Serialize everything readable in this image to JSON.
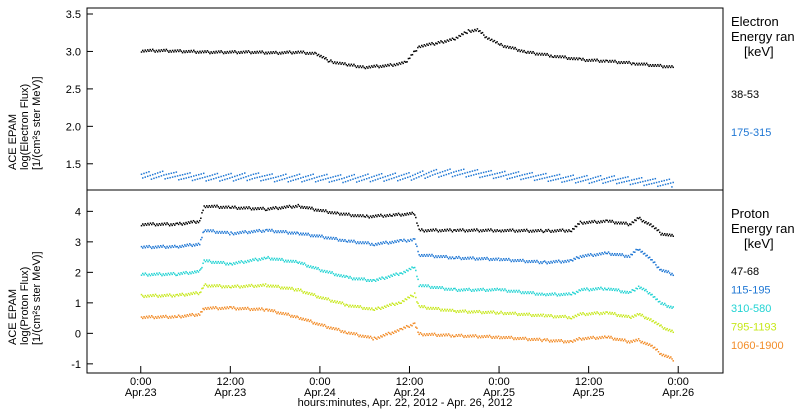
{
  "colors": {
    "axis": "#000000",
    "black": "#000000",
    "blue": "#1f77d4",
    "cyan": "#22d3d3",
    "yellowgreen": "#c7e81c",
    "orange": "#f28c28"
  },
  "chart_data": [
    {
      "type": "scatter",
      "panel": "electron",
      "ylabel_lines": [
        "ACE EPAM",
        "log(Electron Flux)",
        "[1/(cm²s ster MeV)]"
      ],
      "ylim": [
        1.15,
        3.58
      ],
      "yticks": [
        {
          "value": 1.5,
          "label": "1.5"
        },
        {
          "value": 2.0,
          "label": "2.0"
        },
        {
          "value": 2.5,
          "label": "2.5"
        },
        {
          "value": 3.0,
          "label": "3.0"
        },
        {
          "value": 3.5,
          "label": "3.5"
        }
      ],
      "legend_title_lines": [
        "Electron",
        "Energy ran",
        "[keV]"
      ],
      "series": [
        {
          "name": "38-53",
          "color": "#000000",
          "points": [
            [
              0.0,
              3.02
            ],
            [
              0.25,
              3.02
            ],
            [
              0.5,
              3.01
            ],
            [
              0.75,
              3.0
            ],
            [
              1.0,
              3.0
            ],
            [
              1.25,
              3.0
            ],
            [
              1.5,
              2.99
            ],
            [
              1.75,
              3.0
            ],
            [
              1.95,
              2.98
            ],
            [
              2.1,
              2.88
            ],
            [
              2.3,
              2.83
            ],
            [
              2.5,
              2.8
            ],
            [
              2.75,
              2.82
            ],
            [
              2.95,
              2.86
            ],
            [
              3.1,
              3.08
            ],
            [
              3.3,
              3.12
            ],
            [
              3.5,
              3.18
            ],
            [
              3.65,
              3.28
            ],
            [
              3.75,
              3.3
            ],
            [
              3.85,
              3.2
            ],
            [
              4.0,
              3.1
            ],
            [
              4.3,
              3.0
            ],
            [
              4.6,
              2.95
            ],
            [
              4.9,
              2.9
            ],
            [
              5.2,
              2.88
            ],
            [
              5.5,
              2.85
            ],
            [
              5.75,
              2.82
            ],
            [
              5.95,
              2.8
            ]
          ]
        },
        {
          "name": "175-315",
          "color": "#1f77d4",
          "points": [
            [
              0.0,
              1.35
            ],
            [
              0.25,
              1.36
            ],
            [
              0.5,
              1.34
            ],
            [
              0.75,
              1.33
            ],
            [
              1.0,
              1.33
            ],
            [
              1.25,
              1.34
            ],
            [
              1.5,
              1.32
            ],
            [
              1.75,
              1.32
            ],
            [
              2.0,
              1.32
            ],
            [
              2.25,
              1.31
            ],
            [
              2.5,
              1.32
            ],
            [
              2.75,
              1.33
            ],
            [
              3.0,
              1.34
            ],
            [
              3.25,
              1.38
            ],
            [
              3.5,
              1.39
            ],
            [
              3.75,
              1.38
            ],
            [
              4.0,
              1.36
            ],
            [
              4.25,
              1.35
            ],
            [
              4.5,
              1.33
            ],
            [
              4.75,
              1.31
            ],
            [
              5.0,
              1.3
            ],
            [
              5.25,
              1.3
            ],
            [
              5.5,
              1.28
            ],
            [
              5.75,
              1.26
            ],
            [
              5.95,
              1.25
            ]
          ]
        }
      ]
    },
    {
      "type": "scatter",
      "panel": "proton",
      "ylabel_lines": [
        "ACE EPAM",
        "log(Proton Flux)",
        "[1/(cm²s ster MeV)]"
      ],
      "ylim": [
        -1.3,
        4.7
      ],
      "yticks": [
        {
          "value": -1,
          "label": "-1"
        },
        {
          "value": 0,
          "label": "0"
        },
        {
          "value": 1,
          "label": "1"
        },
        {
          "value": 2,
          "label": "2"
        },
        {
          "value": 3,
          "label": "3"
        },
        {
          "value": 4,
          "label": "4"
        }
      ],
      "legend_title_lines": [
        "Proton",
        "Energy ran",
        "[keV]"
      ],
      "series": [
        {
          "name": "47-68",
          "color": "#000000",
          "points": [
            [
              0.0,
              3.6
            ],
            [
              0.4,
              3.6
            ],
            [
              0.65,
              3.7
            ],
            [
              0.7,
              4.2
            ],
            [
              1.0,
              4.15
            ],
            [
              1.4,
              4.1
            ],
            [
              1.75,
              4.2
            ],
            [
              2.0,
              4.05
            ],
            [
              2.2,
              3.95
            ],
            [
              2.5,
              3.85
            ],
            [
              2.8,
              3.9
            ],
            [
              3.05,
              3.95
            ],
            [
              3.1,
              3.4
            ],
            [
              3.5,
              3.4
            ],
            [
              4.0,
              3.4
            ],
            [
              4.5,
              3.38
            ],
            [
              4.8,
              3.4
            ],
            [
              4.9,
              3.65
            ],
            [
              5.2,
              3.7
            ],
            [
              5.45,
              3.6
            ],
            [
              5.55,
              3.8
            ],
            [
              5.7,
              3.55
            ],
            [
              5.8,
              3.3
            ],
            [
              5.95,
              3.2
            ]
          ]
        },
        {
          "name": "115-195",
          "color": "#1f77d4",
          "points": [
            [
              0.0,
              2.85
            ],
            [
              0.4,
              2.87
            ],
            [
              0.65,
              2.95
            ],
            [
              0.7,
              3.4
            ],
            [
              1.0,
              3.3
            ],
            [
              1.4,
              3.4
            ],
            [
              1.75,
              3.3
            ],
            [
              2.0,
              3.2
            ],
            [
              2.3,
              3.05
            ],
            [
              2.6,
              2.95
            ],
            [
              2.9,
              3.05
            ],
            [
              3.05,
              3.1
            ],
            [
              3.1,
              2.6
            ],
            [
              3.5,
              2.5
            ],
            [
              4.0,
              2.45
            ],
            [
              4.5,
              2.35
            ],
            [
              4.8,
              2.4
            ],
            [
              4.9,
              2.55
            ],
            [
              5.2,
              2.65
            ],
            [
              5.45,
              2.55
            ],
            [
              5.55,
              2.8
            ],
            [
              5.7,
              2.4
            ],
            [
              5.8,
              2.1
            ],
            [
              5.95,
              1.95
            ]
          ]
        },
        {
          "name": "310-580",
          "color": "#22d3d3",
          "points": [
            [
              0.0,
              1.95
            ],
            [
              0.4,
              1.97
            ],
            [
              0.65,
              2.05
            ],
            [
              0.7,
              2.4
            ],
            [
              1.0,
              2.3
            ],
            [
              1.4,
              2.5
            ],
            [
              1.75,
              2.35
            ],
            [
              2.0,
              2.1
            ],
            [
              2.3,
              1.85
            ],
            [
              2.6,
              1.75
            ],
            [
              2.9,
              2.0
            ],
            [
              3.05,
              2.2
            ],
            [
              3.1,
              1.6
            ],
            [
              3.5,
              1.45
            ],
            [
              4.0,
              1.45
            ],
            [
              4.5,
              1.3
            ],
            [
              4.8,
              1.3
            ],
            [
              4.9,
              1.45
            ],
            [
              5.2,
              1.5
            ],
            [
              5.45,
              1.35
            ],
            [
              5.55,
              1.55
            ],
            [
              5.7,
              1.3
            ],
            [
              5.8,
              1.0
            ],
            [
              5.95,
              0.85
            ]
          ]
        },
        {
          "name": "795-1193",
          "color": "#c7e81c",
          "points": [
            [
              0.0,
              1.25
            ],
            [
              0.4,
              1.27
            ],
            [
              0.65,
              1.35
            ],
            [
              0.7,
              1.6
            ],
            [
              1.0,
              1.55
            ],
            [
              1.4,
              1.6
            ],
            [
              1.75,
              1.45
            ],
            [
              2.0,
              1.2
            ],
            [
              2.3,
              0.95
            ],
            [
              2.6,
              0.8
            ],
            [
              2.9,
              1.05
            ],
            [
              3.05,
              1.3
            ],
            [
              3.1,
              0.9
            ],
            [
              3.5,
              0.75
            ],
            [
              4.0,
              0.7
            ],
            [
              4.5,
              0.6
            ],
            [
              4.8,
              0.55
            ],
            [
              4.9,
              0.65
            ],
            [
              5.2,
              0.7
            ],
            [
              5.45,
              0.55
            ],
            [
              5.55,
              0.65
            ],
            [
              5.7,
              0.45
            ],
            [
              5.8,
              0.25
            ],
            [
              5.95,
              0.05
            ]
          ]
        },
        {
          "name": "1060-1900",
          "color": "#f28c28",
          "points": [
            [
              0.0,
              0.55
            ],
            [
              0.4,
              0.57
            ],
            [
              0.65,
              0.65
            ],
            [
              0.7,
              0.85
            ],
            [
              1.0,
              0.85
            ],
            [
              1.4,
              0.8
            ],
            [
              1.75,
              0.55
            ],
            [
              2.0,
              0.3
            ],
            [
              2.3,
              0.05
            ],
            [
              2.6,
              -0.15
            ],
            [
              2.9,
              0.15
            ],
            [
              3.05,
              0.35
            ],
            [
              3.1,
              0.0
            ],
            [
              3.5,
              -0.05
            ],
            [
              4.0,
              -0.1
            ],
            [
              4.5,
              -0.2
            ],
            [
              4.8,
              -0.25
            ],
            [
              4.9,
              -0.15
            ],
            [
              5.2,
              -0.1
            ],
            [
              5.45,
              -0.25
            ],
            [
              5.55,
              -0.2
            ],
            [
              5.7,
              -0.4
            ],
            [
              5.8,
              -0.65
            ],
            [
              5.95,
              -0.85
            ]
          ]
        }
      ]
    }
  ],
  "x_axis": {
    "range_days": [
      -0.6,
      6.5
    ],
    "xlabel": "hours:minutes, Apr. 22, 2012 - Apr. 26, 2012",
    "ticks": [
      {
        "value": 0,
        "time": "0:00",
        "date": "Apr.23"
      },
      {
        "value": 1,
        "time": "12:00",
        "date": "Apr.23"
      },
      {
        "value": 2,
        "time": "0:00",
        "date": "Apr.24"
      },
      {
        "value": 3,
        "time": "12:00",
        "date": "Apr.24"
      },
      {
        "value": 4,
        "time": "0:00",
        "date": "Apr.25"
      },
      {
        "value": 5,
        "time": "12:00",
        "date": "Apr.25"
      },
      {
        "value": 6,
        "time": "0:00",
        "date": "Apr.26"
      }
    ]
  }
}
